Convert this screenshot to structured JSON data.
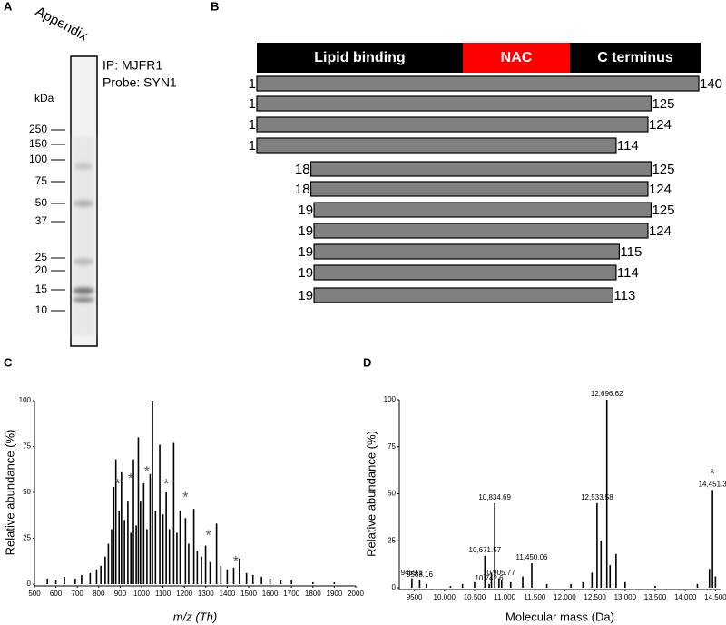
{
  "panels": [
    "A",
    "B",
    "C",
    "D"
  ],
  "blot": {
    "lane_label": "Appendix",
    "ip": "IP: MJFR1",
    "probe": "Probe: SYN1",
    "unit": "kDa",
    "ladder": [
      250,
      150,
      100,
      75,
      50,
      37,
      25,
      20,
      15,
      10
    ]
  },
  "domains": [
    {
      "label": "Lipid binding",
      "color": "#000000"
    },
    {
      "label": "NAC",
      "color": "#ff0000"
    },
    {
      "label": "C terminus",
      "color": "#000000"
    }
  ],
  "fragments": [
    {
      "start": 1,
      "end": 140
    },
    {
      "start": 1,
      "end": 125
    },
    {
      "start": 1,
      "end": 124
    },
    {
      "start": 1,
      "end": 114
    },
    {
      "start": 18,
      "end": 125
    },
    {
      "start": 18,
      "end": 124
    },
    {
      "start": 19,
      "end": 125
    },
    {
      "start": 19,
      "end": 124
    },
    {
      "start": 19,
      "end": 115
    },
    {
      "start": 19,
      "end": 114
    },
    {
      "start": 19,
      "end": 113
    }
  ],
  "fragment_color": "#808080",
  "chart_data": [
    {
      "type": "spectrum",
      "x_label": "m/z (Th)",
      "y_label": "Relative abundance (%)",
      "color": "#000000",
      "x": [
        560,
        600,
        640,
        690,
        720,
        760,
        790,
        810,
        830,
        845,
        860,
        870,
        880,
        895,
        906,
        920,
        936,
        950,
        962,
        975,
        985,
        995,
        1010,
        1025,
        1040,
        1051,
        1065,
        1085,
        1100,
        1115,
        1130,
        1150,
        1165,
        1180,
        1205,
        1220,
        1244,
        1260,
        1280,
        1299,
        1320,
        1350,
        1370,
        1400,
        1430,
        1457,
        1490,
        1520,
        1560,
        1600,
        1650,
        1700,
        1800,
        1900
      ],
      "values": [
        3,
        2,
        4,
        3,
        5,
        6,
        8,
        10,
        15,
        22,
        30,
        53,
        68,
        40,
        61,
        35,
        45,
        28,
        68,
        32,
        80,
        45,
        55,
        30,
        60,
        100,
        40,
        76,
        38,
        50,
        30,
        77,
        28,
        40,
        36,
        22,
        41,
        18,
        15,
        21,
        12,
        33,
        10,
        8,
        9,
        14,
        6,
        5,
        4,
        3,
        2,
        2,
        1,
        1
      ],
      "annotations": [
        {
          "x": 889,
          "y": 54,
          "text": "*"
        },
        {
          "x": 949,
          "y": 57,
          "text": "*"
        },
        {
          "x": 1025,
          "y": 61,
          "text": "*"
        },
        {
          "x": 1115,
          "y": 54,
          "text": "*"
        },
        {
          "x": 1205,
          "y": 47,
          "text": "*"
        },
        {
          "x": 1312,
          "y": 26,
          "text": "*"
        },
        {
          "x": 1440,
          "y": 12,
          "text": "*"
        }
      ],
      "xlim": [
        500,
        2000
      ],
      "xticks": [
        500,
        600,
        700,
        800,
        900,
        1000,
        1100,
        1200,
        1300,
        1400,
        1500,
        1600,
        1700,
        1800,
        1900,
        2000
      ],
      "ylim": [
        0,
        100
      ],
      "yticks": [
        0,
        25,
        50,
        75,
        100
      ]
    },
    {
      "type": "spectrum",
      "x_label": "Molecular mass (Da)",
      "y_label": "Relative abundance (%)",
      "color": "#000000",
      "x": [
        9459.1,
        9588.16,
        9700,
        10100,
        10300,
        10500,
        10671.57,
        10742.6,
        10780,
        10834.69,
        10905.77,
        10950,
        11100,
        11300,
        11450.06,
        11700,
        12100,
        12300,
        12450,
        12533.58,
        12600,
        12696.62,
        12750,
        12850,
        13000,
        13500,
        14200,
        14400,
        14451.3,
        14500
      ],
      "values": [
        5,
        4,
        2,
        1,
        2,
        3,
        17,
        2,
        8,
        45,
        5,
        4,
        3,
        6,
        13,
        2,
        2,
        3,
        8,
        45,
        25,
        100,
        12,
        18,
        3,
        1,
        2,
        10,
        52,
        6
      ],
      "x_labels": [
        "9459.1",
        "9588.16",
        null,
        null,
        null,
        null,
        "10,671.57",
        "10,742.6",
        null,
        "10,834.69",
        "10,905.77",
        null,
        null,
        null,
        "11,450.06",
        null,
        null,
        null,
        null,
        "12,533.58",
        null,
        "12,696.62",
        null,
        null,
        null,
        null,
        null,
        null,
        "14,451.3",
        null
      ],
      "annotations": [
        {
          "x": 14451.3,
          "y": 60,
          "text": "*"
        }
      ],
      "xlim": [
        9250,
        14600
      ],
      "xticks": [
        9500,
        {
          "value": 10000,
          "label": "10,000"
        },
        {
          "value": 10500,
          "label": "10,500"
        },
        {
          "value": 11000,
          "label": "11,000"
        },
        {
          "value": 11500,
          "label": "11,500"
        },
        {
          "value": 12000,
          "label": "12,000"
        },
        {
          "value": 12500,
          "label": "12,500"
        },
        {
          "value": 13000,
          "label": "13,000"
        },
        {
          "value": 13500,
          "label": "13,500"
        },
        {
          "value": 14000,
          "label": "14,000"
        },
        {
          "value": 14500,
          "label": "14,500"
        }
      ],
      "ylim": [
        0,
        100
      ],
      "yticks": [
        0,
        25,
        50,
        75,
        100
      ]
    }
  ]
}
